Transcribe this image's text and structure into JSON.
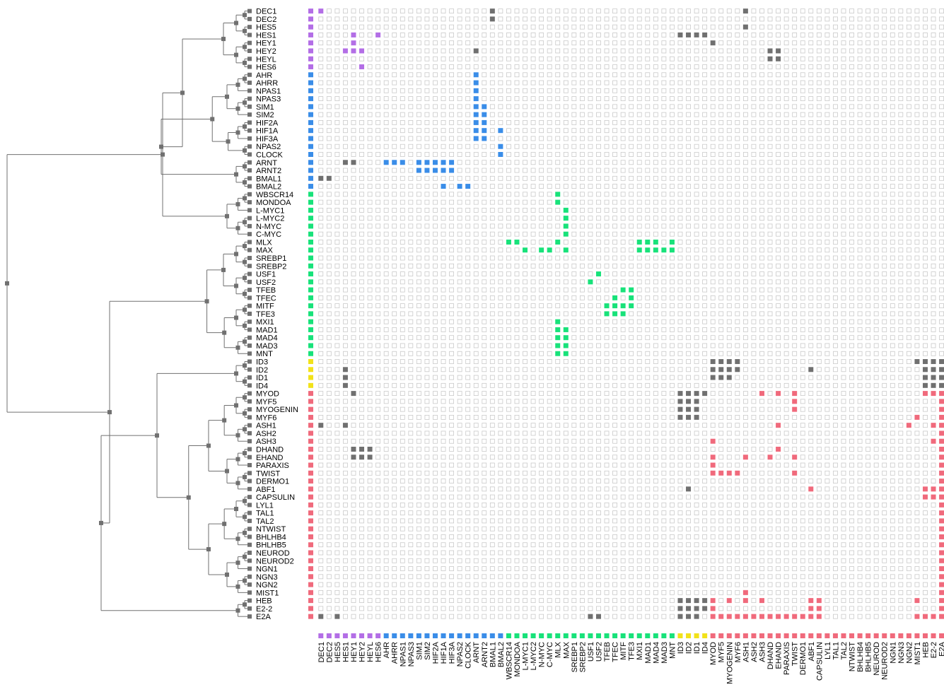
{
  "proteins": [
    "DEC1",
    "DEC2",
    "HES5",
    "HES1",
    "HEY1",
    "HEY2",
    "HEYL",
    "HES6",
    "AHR",
    "AHRR",
    "NPAS1",
    "NPAS3",
    "SIM1",
    "SIM2",
    "HIF2A",
    "HIF1A",
    "HIF3A",
    "NPAS2",
    "CLOCK",
    "ARNT",
    "ARNT2",
    "BMAL1",
    "BMAL2",
    "WBSCR14",
    "MONDOA",
    "L-MYC1",
    "L-MYC2",
    "N-MYC",
    "C-MYC",
    "MLX",
    "MAX",
    "SREBP1",
    "SREBP2",
    "USF1",
    "USF2",
    "TFEB",
    "TFEC",
    "MITF",
    "TFE3",
    "MXI1",
    "MAD1",
    "MAD4",
    "MAD3",
    "MNT",
    "ID3",
    "ID2",
    "ID1",
    "ID4",
    "MYOD",
    "MYF5",
    "MYOGENIN",
    "MYF6",
    "ASH1",
    "ASH2",
    "ASH3",
    "DHAND",
    "EHAND",
    "PARAXIS",
    "TWIST",
    "DERMO1",
    "ABF1",
    "CAPSULIN",
    "LYL1",
    "TAL1",
    "TAL2",
    "NTWIST",
    "BHLHB4",
    "BHLHB5",
    "NEUROD",
    "NEUROD2",
    "NGN1",
    "NGN3",
    "NGN2",
    "MIST1",
    "HEB",
    "E2-2",
    "E2A"
  ],
  "groups": [
    {
      "color": "#b36ee6",
      "count": 8
    },
    {
      "color": "#3a8de8",
      "count": 15
    },
    {
      "color": "#18e27a",
      "count": 21
    },
    {
      "color": "#f2e21a",
      "count": 4
    },
    {
      "color": "#f06a7c",
      "count": 29
    }
  ],
  "colors": {
    "unknown": "#707070",
    "empty_border": "#c9c9c9",
    "dendrogram": "#707070"
  },
  "interactions": [
    [
      "DEC1",
      "DEC1"
    ],
    [
      "DEC1",
      "BMAL1"
    ],
    [
      "DEC1",
      "ASH1"
    ],
    [
      "DEC2",
      "BMAL1"
    ],
    [
      "HES5",
      "ASH1"
    ],
    [
      "HES1",
      "HEY1"
    ],
    [
      "HES1",
      "HES6"
    ],
    [
      "HES1",
      "ID3"
    ],
    [
      "HES1",
      "ID2"
    ],
    [
      "HES1",
      "ID1"
    ],
    [
      "HES1",
      "ID4"
    ],
    [
      "HEY1",
      "HEY1"
    ],
    [
      "HEY1",
      "MYOD"
    ],
    [
      "HEY2",
      "HES1"
    ],
    [
      "HEY2",
      "HEY1"
    ],
    [
      "HEY2",
      "HEY2"
    ],
    [
      "HEY2",
      "ARNT"
    ],
    [
      "HEY2",
      "DHAND"
    ],
    [
      "HEY2",
      "EHAND"
    ],
    [
      "HEYL",
      "DHAND"
    ],
    [
      "HEYL",
      "EHAND"
    ],
    [
      "HES6",
      "HEY2"
    ],
    [
      "AHR",
      "ARNT"
    ],
    [
      "AHRR",
      "ARNT"
    ],
    [
      "NPAS1",
      "ARNT"
    ],
    [
      "NPAS3",
      "ARNT"
    ],
    [
      "SIM1",
      "ARNT"
    ],
    [
      "SIM1",
      "ARNT2"
    ],
    [
      "SIM2",
      "ARNT"
    ],
    [
      "SIM2",
      "ARNT2"
    ],
    [
      "HIF2A",
      "ARNT"
    ],
    [
      "HIF2A",
      "ARNT2"
    ],
    [
      "HIF1A",
      "ARNT"
    ],
    [
      "HIF1A",
      "ARNT2"
    ],
    [
      "HIF1A",
      "BMAL2"
    ],
    [
      "HIF3A",
      "ARNT"
    ],
    [
      "HIF3A",
      "ARNT2"
    ],
    [
      "NPAS2",
      "BMAL2"
    ],
    [
      "CLOCK",
      "BMAL2"
    ],
    [
      "ARNT",
      "HES1"
    ],
    [
      "ARNT",
      "HEY1"
    ],
    [
      "ARNT",
      "AHR"
    ],
    [
      "ARNT",
      "AHRR"
    ],
    [
      "ARNT",
      "NPAS1"
    ],
    [
      "ARNT",
      "SIM1"
    ],
    [
      "ARNT",
      "SIM2"
    ],
    [
      "ARNT",
      "HIF2A"
    ],
    [
      "ARNT",
      "HIF1A"
    ],
    [
      "ARNT",
      "HIF3A"
    ],
    [
      "ARNT2",
      "SIM1"
    ],
    [
      "ARNT2",
      "SIM2"
    ],
    [
      "ARNT2",
      "HIF2A"
    ],
    [
      "ARNT2",
      "HIF1A"
    ],
    [
      "ARNT2",
      "HIF3A"
    ],
    [
      "BMAL1",
      "DEC1"
    ],
    [
      "BMAL1",
      "DEC2"
    ],
    [
      "BMAL2",
      "HIF1A"
    ],
    [
      "BMAL2",
      "NPAS2"
    ],
    [
      "BMAL2",
      "CLOCK"
    ],
    [
      "WBSCR14",
      "MLX"
    ],
    [
      "MONDOA",
      "MLX"
    ],
    [
      "L-MYC1",
      "MAX"
    ],
    [
      "L-MYC2",
      "MAX"
    ],
    [
      "N-MYC",
      "MAX"
    ],
    [
      "C-MYC",
      "MAX"
    ],
    [
      "MLX",
      "WBSCR14"
    ],
    [
      "MLX",
      "MONDOA"
    ],
    [
      "MLX",
      "MLX"
    ],
    [
      "MLX",
      "MXI1"
    ],
    [
      "MLX",
      "MAD1"
    ],
    [
      "MLX",
      "MAD4"
    ],
    [
      "MLX",
      "MNT"
    ],
    [
      "MAX",
      "L-MYC1"
    ],
    [
      "MAX",
      "N-MYC"
    ],
    [
      "MAX",
      "C-MYC"
    ],
    [
      "MAX",
      "MAX"
    ],
    [
      "MAX",
      "MXI1"
    ],
    [
      "MAX",
      "MAD1"
    ],
    [
      "MAX",
      "MAD4"
    ],
    [
      "MAX",
      "MAD3"
    ],
    [
      "MAX",
      "MNT"
    ],
    [
      "USF1",
      "USF2"
    ],
    [
      "USF2",
      "USF1"
    ],
    [
      "TFEB",
      "MITF"
    ],
    [
      "TFEB",
      "TFE3"
    ],
    [
      "TFEC",
      "TFEC"
    ],
    [
      "TFEC",
      "TFE3"
    ],
    [
      "MITF",
      "TFEB"
    ],
    [
      "MITF",
      "TFEC"
    ],
    [
      "MITF",
      "MITF"
    ],
    [
      "MITF",
      "TFE3"
    ],
    [
      "TFE3",
      "TFEB"
    ],
    [
      "TFE3",
      "TFEC"
    ],
    [
      "TFE3",
      "MITF"
    ],
    [
      "MXI1",
      "MLX"
    ],
    [
      "MAD1",
      "MLX"
    ],
    [
      "MAD1",
      "MAX"
    ],
    [
      "MAD4",
      "MLX"
    ],
    [
      "MAD4",
      "MAX"
    ],
    [
      "MAD3",
      "MLX"
    ],
    [
      "MAD3",
      "MAX"
    ],
    [
      "MNT",
      "MLX"
    ],
    [
      "MNT",
      "MAX"
    ],
    [
      "ID3",
      "MYOD"
    ],
    [
      "ID3",
      "MYF5"
    ],
    [
      "ID3",
      "MYOGENIN"
    ],
    [
      "ID3",
      "MYF6"
    ],
    [
      "ID3",
      "MIST1"
    ],
    [
      "ID3",
      "HEB"
    ],
    [
      "ID3",
      "E2-2"
    ],
    [
      "ID3",
      "E2A"
    ],
    [
      "ID2",
      "HES1"
    ],
    [
      "ID2",
      "MYOD"
    ],
    [
      "ID2",
      "MYF5"
    ],
    [
      "ID2",
      "MYOGENIN"
    ],
    [
      "ID2",
      "MYF6"
    ],
    [
      "ID2",
      "ABF1"
    ],
    [
      "ID2",
      "HEB"
    ],
    [
      "ID2",
      "E2-2"
    ],
    [
      "ID2",
      "E2A"
    ],
    [
      "ID1",
      "HES1"
    ],
    [
      "ID1",
      "MYOD"
    ],
    [
      "ID1",
      "MYF5"
    ],
    [
      "ID1",
      "MYOGENIN"
    ],
    [
      "ID1",
      "HEB"
    ],
    [
      "ID1",
      "E2-2"
    ],
    [
      "ID1",
      "E2A"
    ],
    [
      "ID4",
      "HES1"
    ],
    [
      "ID4",
      "HEB"
    ],
    [
      "ID4",
      "E2-2"
    ],
    [
      "ID4",
      "E2A"
    ],
    [
      "MYOD",
      "HEY1"
    ],
    [
      "MYOD",
      "ID3"
    ],
    [
      "MYOD",
      "ID2"
    ],
    [
      "MYOD",
      "ID1"
    ],
    [
      "MYOD",
      "ID4"
    ],
    [
      "MYOD",
      "ASH3"
    ],
    [
      "MYOD",
      "EHAND"
    ],
    [
      "MYOD",
      "TWIST"
    ],
    [
      "MYOD",
      "HEB"
    ],
    [
      "MYOD",
      "E2-2"
    ],
    [
      "MYOD",
      "E2A"
    ],
    [
      "MYF5",
      "ID3"
    ],
    [
      "MYF5",
      "ID2"
    ],
    [
      "MYF5",
      "ID1"
    ],
    [
      "MYF5",
      "TWIST"
    ],
    [
      "MYF5",
      "E2A"
    ],
    [
      "MYOGENIN",
      "ID3"
    ],
    [
      "MYOGENIN",
      "ID2"
    ],
    [
      "MYOGENIN",
      "ID1"
    ],
    [
      "MYOGENIN",
      "TWIST"
    ],
    [
      "MYOGENIN",
      "E2A"
    ],
    [
      "MYF6",
      "ID3"
    ],
    [
      "MYF6",
      "ID2"
    ],
    [
      "MYF6",
      "ID1"
    ],
    [
      "MYF6",
      "MIST1"
    ],
    [
      "MYF6",
      "E2A"
    ],
    [
      "ASH1",
      "DEC1"
    ],
    [
      "ASH1",
      "HES1"
    ],
    [
      "ASH1",
      "EHAND"
    ],
    [
      "ASH1",
      "NGN2"
    ],
    [
      "ASH1",
      "E2-2"
    ],
    [
      "ASH1",
      "E2A"
    ],
    [
      "ASH2",
      "E2A"
    ],
    [
      "ASH3",
      "MYOD"
    ],
    [
      "ASH3",
      "E2-2"
    ],
    [
      "ASH3",
      "E2A"
    ],
    [
      "DHAND",
      "HEY1"
    ],
    [
      "DHAND",
      "HEY2"
    ],
    [
      "DHAND",
      "HEYL"
    ],
    [
      "DHAND",
      "EHAND"
    ],
    [
      "DHAND",
      "E2A"
    ],
    [
      "EHAND",
      "HEY1"
    ],
    [
      "EHAND",
      "HEY2"
    ],
    [
      "EHAND",
      "HEYL"
    ],
    [
      "EHAND",
      "MYOD"
    ],
    [
      "EHAND",
      "ASH1"
    ],
    [
      "EHAND",
      "DHAND"
    ],
    [
      "EHAND",
      "TWIST"
    ],
    [
      "EHAND",
      "E2A"
    ],
    [
      "PARAXIS",
      "MYOD"
    ],
    [
      "PARAXIS",
      "E2A"
    ],
    [
      "TWIST",
      "MYOD"
    ],
    [
      "TWIST",
      "MYF5"
    ],
    [
      "TWIST",
      "MYOGENIN"
    ],
    [
      "TWIST",
      "MYF6"
    ],
    [
      "TWIST",
      "TWIST"
    ],
    [
      "TWIST",
      "E2A"
    ],
    [
      "DERMO1",
      "E2A"
    ],
    [
      "ABF1",
      "ID2"
    ],
    [
      "ABF1",
      "ABF1"
    ],
    [
      "ABF1",
      "HEB"
    ],
    [
      "ABF1",
      "E2-2"
    ],
    [
      "ABF1",
      "E2A"
    ],
    [
      "CAPSULIN",
      "HEB"
    ],
    [
      "CAPSULIN",
      "E2-2"
    ],
    [
      "CAPSULIN",
      "E2A"
    ],
    [
      "LYL1",
      "E2A"
    ],
    [
      "TAL1",
      "E2A"
    ],
    [
      "TAL2",
      "E2A"
    ],
    [
      "NTWIST",
      "E2A"
    ],
    [
      "BHLHB4",
      "E2A"
    ],
    [
      "BHLHB5",
      "E2A"
    ],
    [
      "NEUROD",
      "E2A"
    ],
    [
      "NEUROD2",
      "E2A"
    ],
    [
      "NGN1",
      "E2A"
    ],
    [
      "NGN3",
      "E2A"
    ],
    [
      "NGN2",
      "E2A"
    ],
    [
      "MIST1",
      "ASH1"
    ],
    [
      "MIST1",
      "E2A"
    ],
    [
      "HEB",
      "MYOD"
    ],
    [
      "HEB",
      "ASH1"
    ],
    [
      "HEB",
      "ID3"
    ],
    [
      "HEB",
      "ID2"
    ],
    [
      "HEB",
      "ID1"
    ],
    [
      "HEB",
      "ID4"
    ],
    [
      "HEB",
      "MYOGENIN"
    ],
    [
      "HEB",
      "ASH3"
    ],
    [
      "HEB",
      "ABF1"
    ],
    [
      "HEB",
      "CAPSULIN"
    ],
    [
      "HEB",
      "MIST1"
    ],
    [
      "HEB",
      "E2A"
    ],
    [
      "E2-2",
      "ID3"
    ],
    [
      "E2-2",
      "ID2"
    ],
    [
      "E2-2",
      "ID1"
    ],
    [
      "E2-2",
      "ID4"
    ],
    [
      "E2-2",
      "MYOD"
    ],
    [
      "E2-2",
      "ABF1"
    ],
    [
      "E2-2",
      "CAPSULIN"
    ],
    [
      "E2-2",
      "E2A"
    ],
    [
      "E2A",
      "DEC1"
    ],
    [
      "E2A",
      "HES5"
    ],
    [
      "E2A",
      "USF1"
    ],
    [
      "E2A",
      "USF2"
    ],
    [
      "E2A",
      "ID3"
    ],
    [
      "E2A",
      "ID2"
    ],
    [
      "E2A",
      "ID1"
    ],
    [
      "E2A",
      "MYOD"
    ],
    [
      "E2A",
      "MYF5"
    ],
    [
      "E2A",
      "MYOGENIN"
    ],
    [
      "E2A",
      "MYF6"
    ],
    [
      "E2A",
      "ASH1"
    ],
    [
      "E2A",
      "ASH2"
    ],
    [
      "E2A",
      "ASH3"
    ],
    [
      "E2A",
      "DHAND"
    ],
    [
      "E2A",
      "EHAND"
    ],
    [
      "E2A",
      "PARAXIS"
    ],
    [
      "E2A",
      "TWIST"
    ],
    [
      "E2A",
      "DERMO1"
    ],
    [
      "E2A",
      "ABF1"
    ],
    [
      "E2A",
      "CAPSULIN"
    ],
    [
      "E2A",
      "MIST1"
    ],
    [
      "E2A",
      "HEB"
    ],
    [
      "E2A",
      "E2-2"
    ],
    [
      "E2A",
      "E2A"
    ]
  ],
  "unknown_colored_extras": [
    [
      "USF1",
      "E2A"
    ],
    [
      "USF2",
      "E2A"
    ],
    [
      "HES1",
      "ASH1"
    ]
  ]
}
